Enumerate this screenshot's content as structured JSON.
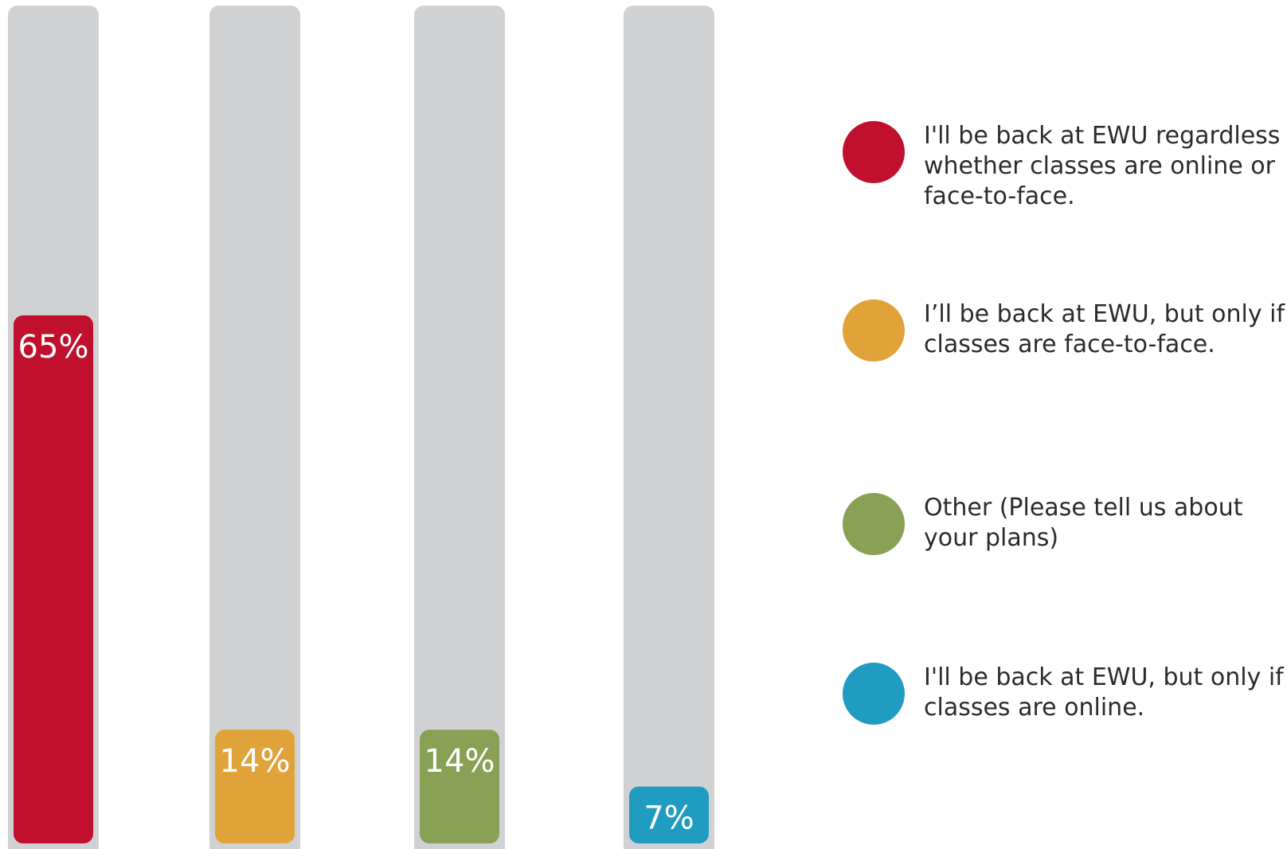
{
  "chart_data": {
    "type": "bar",
    "ylim": [
      0,
      100
    ],
    "values_unit": "%",
    "categories": [
      "I'll be back at EWU regardless whether classes are online or face-to-face.",
      "I’ll be back at EWU, but only if classes are face-to-face.",
      "Other (Please tell us about your plans)",
      "I'll be back at EWU, but only if classes are online."
    ],
    "values": [
      65,
      14,
      14,
      7
    ],
    "value_labels": [
      "65%",
      "14%",
      "14%",
      "7%"
    ],
    "colors": [
      "#c0102e",
      "#e0a339",
      "#89a155",
      "#209cc0"
    ],
    "track_color": "#d0d1d3",
    "legend_position": "right"
  },
  "legend": {
    "items": [
      {
        "label": "I'll be back at EWU regardless whether classes are online or face-to-face.",
        "color": "#c0102e"
      },
      {
        "label": "I’ll be back at EWU, but only if classes are face-to-face.",
        "color": "#e0a339"
      },
      {
        "label": "Other (Please tell us about your plans)",
        "color": "#89a155"
      },
      {
        "label": "I'll be back at EWU, but only if classes are online.",
        "color": "#209cc0"
      }
    ]
  }
}
